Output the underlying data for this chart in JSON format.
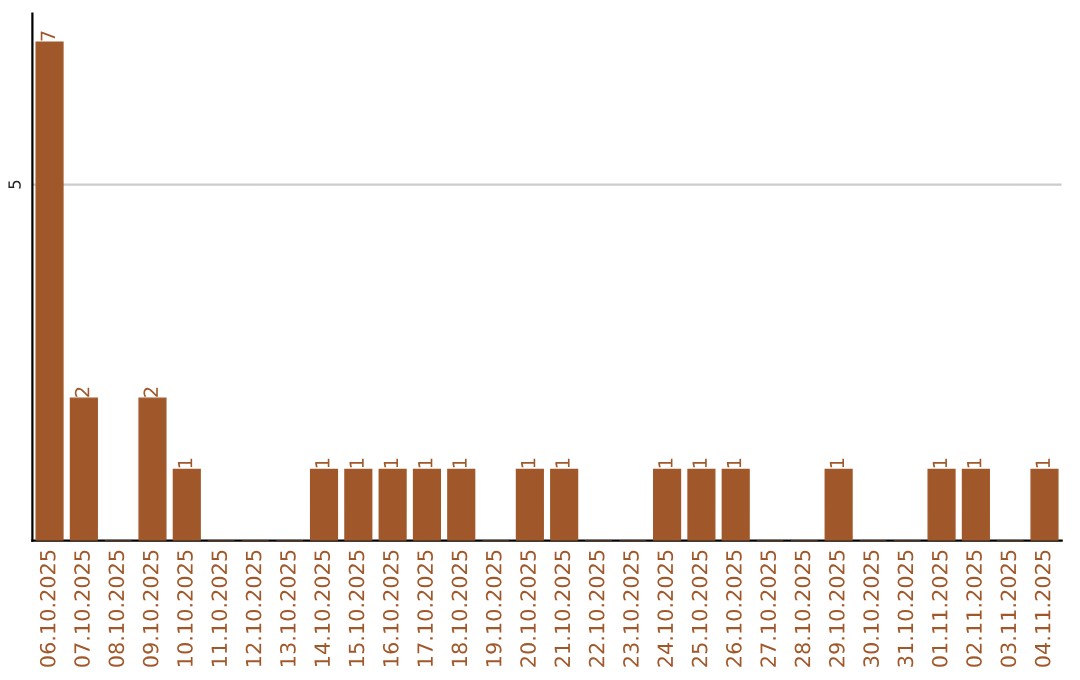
{
  "chart_data": {
    "type": "bar",
    "categories": [
      "06.10.2025",
      "07.10.2025",
      "08.10.2025",
      "09.10.2025",
      "10.10.2025",
      "11.10.2025",
      "12.10.2025",
      "13.10.2025",
      "14.10.2025",
      "15.10.2025",
      "16.10.2025",
      "17.10.2025",
      "18.10.2025",
      "19.10.2025",
      "20.10.2025",
      "21.10.2025",
      "22.10.2025",
      "23.10.2025",
      "24.10.2025",
      "25.10.2025",
      "26.10.2025",
      "27.10.2025",
      "28.10.2025",
      "29.10.2025",
      "30.10.2025",
      "31.10.2025",
      "01.11.2025",
      "02.11.2025",
      "03.11.2025",
      "04.11.2025"
    ],
    "values": [
      7,
      2,
      0,
      2,
      1,
      0,
      0,
      0,
      1,
      1,
      1,
      1,
      1,
      0,
      1,
      1,
      0,
      0,
      1,
      1,
      1,
      0,
      0,
      1,
      0,
      0,
      1,
      1,
      0,
      1
    ],
    "value_labels": [
      "7",
      "2",
      null,
      "2",
      "1",
      null,
      null,
      null,
      "1",
      "1",
      "1",
      "1",
      "1",
      null,
      "1",
      "1",
      null,
      null,
      "1",
      "1",
      "1",
      null,
      null,
      "1",
      null,
      null,
      "1",
      "1",
      null,
      "1"
    ],
    "color": "#a0582a",
    "ylim": [
      0,
      7.4
    ],
    "yticks": [
      5
    ],
    "grid": "y",
    "legend": false
  }
}
